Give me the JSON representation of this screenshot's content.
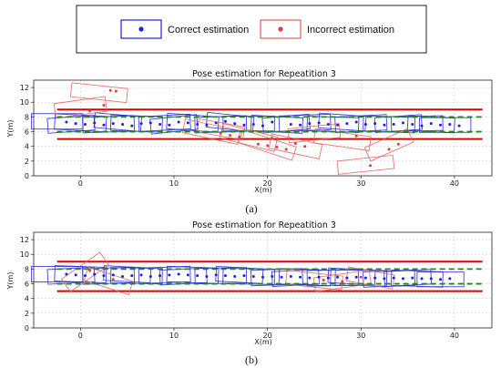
{
  "legend": {
    "items": [
      {
        "label": "Correct estimation",
        "color": "#1f1fe0",
        "box_color": "#1f1fe0"
      },
      {
        "label": "Incorrect estimation",
        "color": "#e53a3a",
        "box_color": "#e06060"
      }
    ]
  },
  "chart_data": [
    {
      "type": "scatter",
      "caption": "(a)",
      "title": "Pose estimation for Repeatition 3",
      "xlabel": "X(m)",
      "ylabel": "Y(m)",
      "xlim": [
        -5,
        44
      ],
      "ylim": [
        0,
        13
      ],
      "xticks": [
        "0",
        "10",
        "20",
        "30",
        "40"
      ],
      "yticks": [
        "0",
        "2",
        "4",
        "6",
        "8",
        "10",
        "12"
      ],
      "grid": true,
      "boundary_lines": {
        "color": "#e00000",
        "y": [
          5,
          9
        ],
        "x_range": [
          -2.5,
          43
        ]
      },
      "lane_lines": {
        "color": "#1a8a1a",
        "style": "dashed",
        "y": [
          6,
          8
        ],
        "x_range": [
          -2.5,
          43
        ]
      },
      "series": [
        {
          "name": "Correct estimation",
          "color": "#1f1fe0",
          "points": [
            [
              -1.5,
              7.3
            ],
            [
              -0.5,
              7.1
            ],
            [
              0.5,
              7.0
            ],
            [
              1.5,
              7.2
            ],
            [
              2.5,
              6.9
            ],
            [
              3.5,
              7.1
            ],
            [
              4.5,
              7.0
            ],
            [
              5.5,
              6.8
            ],
            [
              6.5,
              7.1
            ],
            [
              7.5,
              7.2
            ],
            [
              8.5,
              7.0
            ],
            [
              9.5,
              6.9
            ],
            [
              10.5,
              7.3
            ],
            [
              11.5,
              7.2
            ],
            [
              12.5,
              7.0
            ],
            [
              13.5,
              6.9
            ],
            [
              14.5,
              7.2
            ],
            [
              15.5,
              7.4
            ],
            [
              16.5,
              7.1
            ],
            [
              17.5,
              6.9
            ],
            [
              18.5,
              7.0
            ],
            [
              19.5,
              6.8
            ],
            [
              20.5,
              7.3
            ],
            [
              22.5,
              7.0
            ],
            [
              23.5,
              6.9
            ],
            [
              24.5,
              7.1
            ],
            [
              25.5,
              7.2
            ],
            [
              26.5,
              7.0
            ],
            [
              27.5,
              6.9
            ],
            [
              28.5,
              7.1
            ],
            [
              29.5,
              7.3
            ],
            [
              30.5,
              7.0
            ],
            [
              31.5,
              7.1
            ],
            [
              32.5,
              6.9
            ],
            [
              33.5,
              7.0
            ],
            [
              34.5,
              7.2
            ],
            [
              35.5,
              7.0
            ],
            [
              36.5,
              6.8
            ],
            [
              37.5,
              7.1
            ],
            [
              38.5,
              6.9
            ],
            [
              39.5,
              7.0
            ],
            [
              40.5,
              6.8
            ]
          ]
        },
        {
          "name": "Incorrect estimation",
          "color": "#e53a3a",
          "points": [
            [
              3.2,
              11.6
            ],
            [
              3.8,
              11.5
            ],
            [
              1.0,
              8.8
            ],
            [
              2.5,
              9.6
            ],
            [
              15.0,
              5.8
            ],
            [
              16.0,
              5.5
            ],
            [
              17.0,
              5.3
            ],
            [
              19.0,
              4.3
            ],
            [
              20.0,
              4.1
            ],
            [
              21.0,
              3.9
            ],
            [
              22.0,
              3.6
            ],
            [
              23.0,
              4.4
            ],
            [
              24.0,
              4.0
            ],
            [
              29.5,
              5.4
            ],
            [
              31.0,
              1.4
            ],
            [
              33.0,
              3.6
            ],
            [
              34.0,
              4.3
            ],
            [
              27.5,
              5.0
            ],
            [
              20.5,
              5.1
            ]
          ]
        }
      ],
      "boxes": {
        "correct": [
          [
            -2.5,
            7.4,
            5.5,
            2.1,
            0
          ],
          [
            0,
            7.2,
            5.5,
            2.1,
            -3
          ],
          [
            3,
            7.0,
            5.5,
            2.1,
            2
          ],
          [
            6,
            7.1,
            5.5,
            2.1,
            -2
          ],
          [
            9,
            7.2,
            5.5,
            2.0,
            3
          ],
          [
            12,
            7.2,
            5.5,
            2.1,
            -4
          ],
          [
            15,
            7.0,
            5.5,
            2.1,
            2
          ],
          [
            18,
            7.1,
            5.5,
            2.0,
            0
          ],
          [
            21,
            7.0,
            5.5,
            2.1,
            -3
          ],
          [
            24,
            7.2,
            5.5,
            2.1,
            2
          ],
          [
            27,
            7.0,
            5.5,
            2.0,
            -2
          ],
          [
            30,
            7.1,
            5.5,
            2.1,
            3
          ],
          [
            33,
            7.0,
            5.5,
            2.1,
            -2
          ],
          [
            36,
            7.1,
            5.5,
            2.0,
            1
          ],
          [
            39,
            6.9,
            5.5,
            2.0,
            0
          ],
          [
            -1,
            7.0,
            5,
            2.0,
            4
          ],
          [
            4,
            7.3,
            5,
            2.0,
            -5
          ],
          [
            10,
            7.0,
            5,
            2.0,
            6
          ],
          [
            16,
            7.3,
            5,
            2.0,
            -6
          ],
          [
            22,
            7.1,
            5,
            2.0,
            5
          ],
          [
            28,
            7.3,
            5,
            2.0,
            -4
          ],
          [
            34,
            7.1,
            5,
            2.0,
            4
          ],
          [
            37.5,
            7.0,
            5,
            2.0,
            -3
          ]
        ],
        "incorrect": [
          [
            2,
            11.3,
            6,
            1.9,
            -6
          ],
          [
            0,
            9.3,
            5.5,
            2.0,
            8
          ],
          [
            14,
            6.0,
            6,
            1.9,
            -12
          ],
          [
            18,
            5.2,
            6,
            2.0,
            -14
          ],
          [
            20,
            4.2,
            6,
            1.9,
            -18
          ],
          [
            23,
            4.0,
            5.5,
            2.0,
            -12
          ],
          [
            30.5,
            1.5,
            6,
            1.8,
            6
          ],
          [
            33,
            4.2,
            5,
            2.0,
            24
          ],
          [
            28,
            4.9,
            6,
            1.9,
            -8
          ],
          [
            15,
            6.3,
            5,
            1.8,
            -10
          ],
          [
            25,
            5.8,
            5.5,
            1.9,
            6
          ]
        ]
      }
    },
    {
      "type": "scatter",
      "caption": "(b)",
      "title": "Pose estimation for Repeatition 3",
      "xlabel": "X(m)",
      "ylabel": "Y(m)",
      "xlim": [
        -5,
        44
      ],
      "ylim": [
        0,
        13
      ],
      "xticks": [
        "0",
        "10",
        "20",
        "30",
        "40"
      ],
      "yticks": [
        "0",
        "2",
        "4",
        "6",
        "8",
        "10",
        "12"
      ],
      "grid": true,
      "boundary_lines": {
        "color": "#e00000",
        "y": [
          5,
          9
        ],
        "x_range": [
          -2.5,
          43
        ]
      },
      "lane_lines": {
        "color": "#1a8a1a",
        "style": "dashed",
        "y": [
          6,
          8
        ],
        "x_range": [
          -2.5,
          43
        ]
      },
      "series": [
        {
          "name": "Correct estimation",
          "color": "#1f1fe0",
          "points": [
            [
              -1.5,
              7.3
            ],
            [
              -0.5,
              7.2
            ],
            [
              0.5,
              7.1
            ],
            [
              1.5,
              7.3
            ],
            [
              2.5,
              7.1
            ],
            [
              3.5,
              7.2
            ],
            [
              4.5,
              7.0
            ],
            [
              5.5,
              7.1
            ],
            [
              6.5,
              7.2
            ],
            [
              7.5,
              7.0
            ],
            [
              8.5,
              7.1
            ],
            [
              9.5,
              7.2
            ],
            [
              10.5,
              7.3
            ],
            [
              11.5,
              7.2
            ],
            [
              12.5,
              7.1
            ],
            [
              13.5,
              7.0
            ],
            [
              14.5,
              7.2
            ],
            [
              15.5,
              7.1
            ],
            [
              16.5,
              7.0
            ],
            [
              17.5,
              7.1
            ],
            [
              18.5,
              7.0
            ],
            [
              19.5,
              6.9
            ],
            [
              20.5,
              7.0
            ],
            [
              21.5,
              6.9
            ],
            [
              22.5,
              7.0
            ],
            [
              23.5,
              6.9
            ],
            [
              24.5,
              6.8
            ],
            [
              25.5,
              6.9
            ],
            [
              26.5,
              6.8
            ],
            [
              27.5,
              6.9
            ],
            [
              28.5,
              6.8
            ],
            [
              29.5,
              6.9
            ],
            [
              30.5,
              6.8
            ],
            [
              31.5,
              6.8
            ],
            [
              32.5,
              6.7
            ],
            [
              33.5,
              6.8
            ],
            [
              34.5,
              6.7
            ],
            [
              35.5,
              6.8
            ],
            [
              36.5,
              6.7
            ],
            [
              37.5,
              6.7
            ],
            [
              38.5,
              6.6
            ],
            [
              39.5,
              6.7
            ]
          ]
        },
        {
          "name": "Incorrect estimation",
          "color": "#e53a3a",
          "points": [
            [
              1.0,
              7.8
            ],
            [
              3.5,
              6.6
            ],
            [
              26.0,
              6.5
            ],
            [
              28.0,
              6.3
            ],
            [
              30.0,
              6.9
            ]
          ]
        }
      ],
      "boxes": {
        "correct": [
          [
            -2.5,
            7.3,
            5.5,
            2.1,
            0
          ],
          [
            0,
            7.3,
            5.5,
            2.1,
            -2
          ],
          [
            3,
            7.1,
            5.5,
            2.1,
            2
          ],
          [
            6,
            7.1,
            5.5,
            2.1,
            -1
          ],
          [
            9,
            7.2,
            5.5,
            2.1,
            2
          ],
          [
            12,
            7.2,
            5.5,
            2.1,
            -2
          ],
          [
            15,
            7.1,
            5.5,
            2.1,
            1
          ],
          [
            18,
            7.0,
            5.5,
            2.1,
            -1
          ],
          [
            21,
            6.9,
            5.5,
            2.1,
            2
          ],
          [
            24,
            6.9,
            5.5,
            2.1,
            -2
          ],
          [
            27,
            6.8,
            5.5,
            2.1,
            1
          ],
          [
            30,
            6.8,
            5.5,
            2.1,
            -1
          ],
          [
            33,
            6.7,
            5.5,
            2.1,
            2
          ],
          [
            36,
            6.7,
            5.5,
            2.1,
            -2
          ],
          [
            38.5,
            6.6,
            5,
            2.0,
            0
          ],
          [
            -1,
            7.1,
            5,
            2.0,
            3
          ],
          [
            5,
            7.3,
            5,
            2.0,
            -3
          ],
          [
            11,
            7.0,
            5,
            2.0,
            3
          ],
          [
            17,
            7.2,
            5,
            2.0,
            -3
          ],
          [
            23,
            6.8,
            5,
            2.0,
            3
          ],
          [
            29,
            7.0,
            5,
            2.0,
            -3
          ],
          [
            35,
            6.8,
            5,
            2.0,
            3
          ]
        ],
        "incorrect": [
          [
            0.5,
            7.6,
            5,
            2.1,
            35
          ],
          [
            3,
            6.4,
            5,
            1.9,
            -18
          ],
          [
            25,
            6.5,
            6,
            1.9,
            -6
          ],
          [
            28,
            6.4,
            6,
            1.9,
            8
          ],
          [
            31,
            6.8,
            5,
            1.9,
            -10
          ]
        ]
      }
    }
  ]
}
